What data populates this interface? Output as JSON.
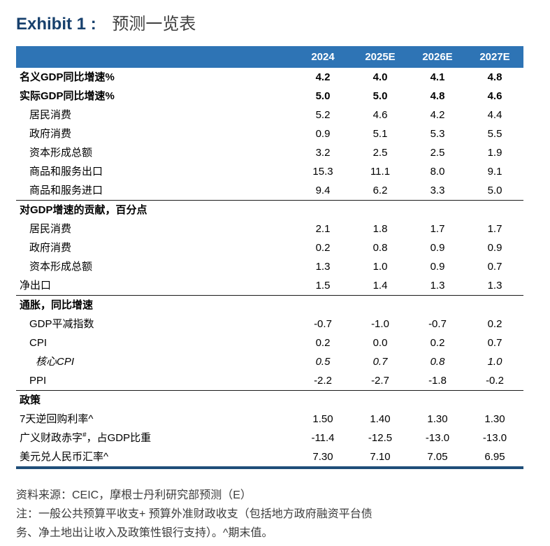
{
  "title": {
    "exhibit_label": "Exhibit 1 :",
    "text": "预测一览表"
  },
  "chart_data": {
    "type": "table",
    "title": "预测一览表",
    "columns": [
      "",
      "2024",
      "2025E",
      "2026E",
      "2027E"
    ],
    "rows": [
      {
        "label": "名义GDP同比增速%",
        "bold": true,
        "indent": 0,
        "values": [
          "4.2",
          "4.0",
          "4.1",
          "4.8"
        ]
      },
      {
        "label": "实际GDP同比增速%",
        "bold": true,
        "indent": 0,
        "values": [
          "5.0",
          "5.0",
          "4.8",
          "4.6"
        ]
      },
      {
        "label": "居民消费",
        "indent": 1,
        "values": [
          "5.2",
          "4.6",
          "4.2",
          "4.4"
        ]
      },
      {
        "label": "政府消费",
        "indent": 1,
        "values": [
          "0.9",
          "5.1",
          "5.3",
          "5.5"
        ]
      },
      {
        "label": "资本形成总额",
        "indent": 1,
        "values": [
          "3.2",
          "2.5",
          "2.5",
          "1.9"
        ]
      },
      {
        "label": "商品和服务出口",
        "indent": 1,
        "values": [
          "15.3",
          "11.1",
          "8.0",
          "9.1"
        ]
      },
      {
        "label": "商品和服务进口",
        "indent": 1,
        "values": [
          "9.4",
          "6.2",
          "3.3",
          "5.0"
        ]
      },
      {
        "label": "对GDP增速的贡献，百分点",
        "bold": true,
        "section": true,
        "indent": 0,
        "values": [
          "",
          "",
          "",
          ""
        ]
      },
      {
        "label": "居民消费",
        "indent": 1,
        "values": [
          "2.1",
          "1.8",
          "1.7",
          "1.7"
        ]
      },
      {
        "label": "政府消费",
        "indent": 1,
        "values": [
          "0.2",
          "0.8",
          "0.9",
          "0.9"
        ]
      },
      {
        "label": "资本形成总额",
        "indent": 1,
        "values": [
          "1.3",
          "1.0",
          "0.9",
          "0.7"
        ]
      },
      {
        "label": "净出口",
        "indent": 0,
        "values": [
          "1.5",
          "1.4",
          "1.3",
          "1.3"
        ]
      },
      {
        "label": "通胀，同比增速",
        "bold": true,
        "section": true,
        "indent": 0,
        "values": [
          "",
          "",
          "",
          ""
        ]
      },
      {
        "label": "GDP平减指数",
        "indent": 1,
        "values": [
          "-0.7",
          "-1.0",
          "-0.7",
          "0.2"
        ]
      },
      {
        "label": "CPI",
        "indent": 1,
        "values": [
          "0.2",
          "0.0",
          "0.2",
          "0.7"
        ]
      },
      {
        "label": "核心CPI",
        "italic": true,
        "indent": 2,
        "values": [
          "0.5",
          "0.7",
          "0.8",
          "1.0"
        ]
      },
      {
        "label": "PPI",
        "indent": 1,
        "values": [
          "-2.2",
          "-2.7",
          "-1.8",
          "-0.2"
        ]
      },
      {
        "label": "政策",
        "bold": true,
        "section": true,
        "indent": 0,
        "values": [
          "",
          "",
          "",
          ""
        ]
      },
      {
        "label": "7天逆回购利率^",
        "indent": 0,
        "values": [
          "1.50",
          "1.40",
          "1.30",
          "1.30"
        ]
      },
      {
        "label": "广义财政赤字",
        "label_sup": "#",
        "label_rest": "，占GDP比重",
        "indent": 0,
        "values": [
          "-11.4",
          "-12.5",
          "-13.0",
          "-13.0"
        ]
      },
      {
        "label": "美元兑人民币汇率^",
        "indent": 0,
        "values": [
          "7.30",
          "7.10",
          "7.05",
          "6.95"
        ]
      }
    ]
  },
  "footer": {
    "source": "资料来源：CEIC，摩根士丹利研究部预测（E）",
    "note_line1": "注：一般公共预算平收支+ 预算外准财政收支（包括地方政府融资平台债",
    "note_line2": "务、净土地出让收入及政策性银行支持）。^期末值。"
  },
  "colors": {
    "header_bg": "#2e74b5",
    "exhibit_title": "#17406d",
    "table_bottom_border": "#1f4e79"
  }
}
